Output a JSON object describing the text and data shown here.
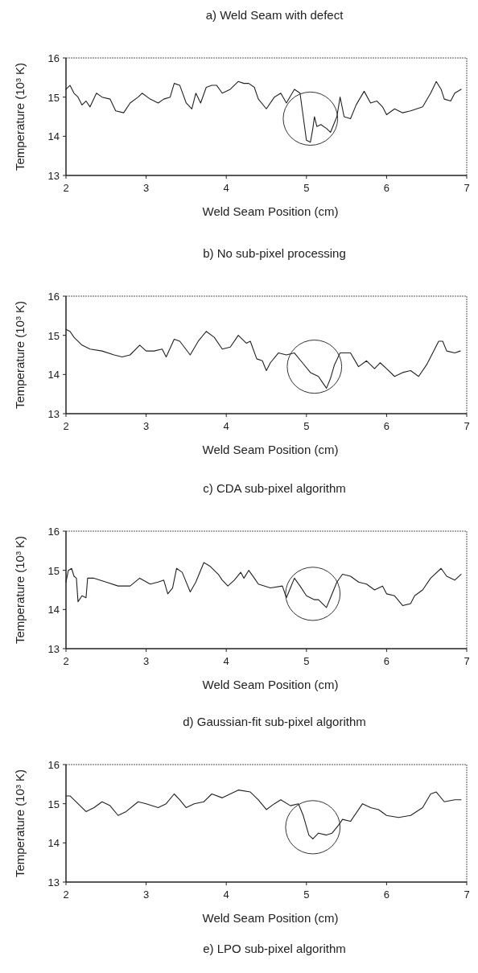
{
  "chart_data": [
    {
      "type": "line",
      "title": "a) Weld Seam with defect",
      "xlabel": "Weld Seam Position (cm)",
      "ylabel": "Temperature (10³ K)",
      "xlim": [
        2,
        7
      ],
      "xticks": [
        2,
        3,
        4,
        5,
        6,
        7
      ],
      "ylim": [
        13,
        16
      ],
      "yticks": [
        13,
        14,
        15,
        16
      ],
      "grid": false,
      "series": [
        {
          "color": "#222222",
          "x": [
            2.0,
            2.05,
            2.1,
            2.15,
            2.2,
            2.25,
            2.3,
            2.38,
            2.45,
            2.55,
            2.62,
            2.72,
            2.8,
            2.9,
            2.95,
            3.05,
            3.15,
            3.22,
            3.3,
            3.35,
            3.42,
            3.5,
            3.57,
            3.62,
            3.68,
            3.75,
            3.82,
            3.88,
            3.95,
            4.05,
            4.15,
            4.22,
            4.28,
            4.35,
            4.4,
            4.5,
            4.6,
            4.68,
            4.75,
            4.85,
            4.92,
            4.96,
            5.0,
            5.05,
            5.08,
            5.1,
            5.13,
            5.18,
            5.25,
            5.3,
            5.38,
            5.42,
            5.47,
            5.55,
            5.62,
            5.72,
            5.8,
            5.88,
            5.95,
            6.0,
            6.1,
            6.2,
            6.3,
            6.45,
            6.55,
            6.62,
            6.68,
            6.72,
            6.8,
            6.85,
            6.93
          ],
          "values": [
            15.2,
            15.3,
            15.1,
            15.0,
            14.8,
            14.9,
            14.75,
            15.1,
            15.0,
            14.95,
            14.65,
            14.6,
            14.85,
            15.0,
            15.1,
            14.95,
            14.85,
            14.95,
            15.0,
            15.35,
            15.3,
            14.85,
            14.7,
            15.1,
            14.85,
            15.25,
            15.3,
            15.3,
            15.1,
            15.2,
            15.4,
            15.35,
            15.35,
            15.25,
            14.95,
            14.7,
            15.0,
            15.1,
            14.85,
            15.2,
            15.1,
            14.5,
            13.9,
            13.85,
            14.2,
            14.5,
            14.25,
            14.3,
            14.2,
            14.1,
            14.5,
            15.0,
            14.5,
            14.45,
            14.8,
            15.15,
            14.85,
            14.9,
            14.75,
            14.55,
            14.7,
            14.6,
            14.65,
            14.75,
            15.1,
            15.4,
            15.2,
            14.95,
            14.9,
            15.1,
            15.2
          ]
        }
      ]
    },
    {
      "type": "line",
      "title": "b) No sub-pixel processing",
      "xlabel": "Weld Seam Position (cm)",
      "ylabel": "Temperature (10³ K)",
      "xlim": [
        2,
        7
      ],
      "xticks": [
        2,
        3,
        4,
        5,
        6,
        7
      ],
      "ylim": [
        13,
        16
      ],
      "yticks": [
        13,
        14,
        15,
        16
      ],
      "grid": false,
      "series": [
        {
          "color": "#222222",
          "x": [
            2.0,
            2.05,
            2.1,
            2.2,
            2.3,
            2.45,
            2.6,
            2.7,
            2.8,
            2.92,
            3.0,
            3.1,
            3.2,
            3.25,
            3.35,
            3.42,
            3.55,
            3.65,
            3.75,
            3.85,
            3.95,
            4.05,
            4.15,
            4.25,
            4.3,
            4.38,
            4.45,
            4.5,
            4.55,
            4.65,
            4.75,
            4.85,
            4.95,
            5.05,
            5.15,
            5.2,
            5.25,
            5.3,
            5.35,
            5.42,
            5.55,
            5.65,
            5.75,
            5.85,
            5.92,
            6.0,
            6.1,
            6.2,
            6.3,
            6.4,
            6.5,
            6.65,
            6.7,
            6.75,
            6.85,
            6.92
          ],
          "values": [
            15.15,
            15.1,
            14.95,
            14.75,
            14.65,
            14.6,
            14.5,
            14.45,
            14.5,
            14.75,
            14.6,
            14.6,
            14.65,
            14.45,
            14.9,
            14.85,
            14.5,
            14.85,
            15.1,
            14.95,
            14.65,
            14.7,
            15.0,
            14.8,
            14.85,
            14.4,
            14.35,
            14.1,
            14.3,
            14.55,
            14.5,
            14.55,
            14.3,
            14.05,
            13.95,
            13.8,
            13.65,
            13.9,
            14.25,
            14.55,
            14.55,
            14.2,
            14.35,
            14.15,
            14.3,
            14.15,
            13.95,
            14.05,
            14.1,
            13.95,
            14.25,
            14.85,
            14.85,
            14.6,
            14.55,
            14.6
          ]
        }
      ]
    },
    {
      "type": "line",
      "title": "c) CDA sub-pixel algorithm",
      "xlabel": "Weld Seam Position (cm)",
      "ylabel": "Temperature (10³ K)",
      "xlim": [
        2,
        7
      ],
      "xticks": [
        2,
        3,
        4,
        5,
        6,
        7
      ],
      "ylim": [
        13,
        16
      ],
      "yticks": [
        13,
        14,
        15,
        16
      ],
      "grid": false,
      "series": [
        {
          "color": "#222222",
          "x": [
            2.0,
            2.03,
            2.07,
            2.1,
            2.13,
            2.15,
            2.2,
            2.25,
            2.27,
            2.35,
            2.5,
            2.65,
            2.8,
            2.92,
            3.05,
            3.15,
            3.22,
            3.27,
            3.33,
            3.38,
            3.45,
            3.55,
            3.62,
            3.72,
            3.8,
            3.9,
            3.95,
            4.02,
            4.1,
            4.18,
            4.22,
            4.28,
            4.35,
            4.4,
            4.55,
            4.7,
            4.75,
            4.8,
            4.85,
            4.92,
            5.0,
            5.1,
            5.15,
            5.25,
            5.3,
            5.38,
            5.45,
            5.55,
            5.65,
            5.75,
            5.85,
            5.95,
            6.0,
            6.1,
            6.2,
            6.3,
            6.35,
            6.45,
            6.55,
            6.68,
            6.75,
            6.85,
            6.93
          ],
          "values": [
            14.7,
            15.0,
            15.05,
            14.85,
            14.8,
            14.2,
            14.35,
            14.3,
            14.8,
            14.8,
            14.7,
            14.6,
            14.6,
            14.8,
            14.65,
            14.7,
            14.75,
            14.4,
            14.55,
            15.05,
            14.95,
            14.45,
            14.7,
            15.2,
            15.1,
            14.9,
            14.75,
            14.6,
            14.75,
            14.95,
            14.8,
            15.0,
            14.8,
            14.65,
            14.55,
            14.6,
            14.3,
            14.55,
            14.8,
            14.6,
            14.35,
            14.25,
            14.25,
            14.05,
            14.3,
            14.7,
            14.9,
            14.85,
            14.7,
            14.65,
            14.5,
            14.6,
            14.4,
            14.35,
            14.1,
            14.15,
            14.35,
            14.5,
            14.8,
            15.05,
            14.85,
            14.75,
            14.9
          ]
        }
      ]
    },
    {
      "type": "line",
      "title": "d) Gaussian-fit sub-pixel algorithm",
      "xlabel": "Weld Seam Position (cm)",
      "ylabel": "Temperature (10³ K)",
      "xlim": [
        2,
        7
      ],
      "xticks": [
        2,
        3,
        4,
        5,
        6,
        7
      ],
      "ylim": [
        13,
        16
      ],
      "yticks": [
        13,
        14,
        15,
        16
      ],
      "grid": false,
      "annotations": [
        "e) LPO sub-pixel algorithm"
      ],
      "series": [
        {
          "color": "#222222",
          "x": [
            2.0,
            2.05,
            2.15,
            2.25,
            2.35,
            2.45,
            2.55,
            2.65,
            2.75,
            2.9,
            3.0,
            3.15,
            3.25,
            3.35,
            3.42,
            3.5,
            3.6,
            3.72,
            3.82,
            3.95,
            4.05,
            4.15,
            4.3,
            4.4,
            4.5,
            4.6,
            4.68,
            4.8,
            4.9,
            4.96,
            5.03,
            5.08,
            5.15,
            5.25,
            5.32,
            5.4,
            5.45,
            5.55,
            5.7,
            5.8,
            5.9,
            6.0,
            6.15,
            6.3,
            6.45,
            6.55,
            6.62,
            6.72,
            6.85,
            6.93
          ],
          "values": [
            15.2,
            15.2,
            15.0,
            14.8,
            14.9,
            15.05,
            14.95,
            14.7,
            14.8,
            15.05,
            15.0,
            14.9,
            15.0,
            15.25,
            15.1,
            14.9,
            15.0,
            15.05,
            15.25,
            15.15,
            15.25,
            15.35,
            15.3,
            15.1,
            14.85,
            15.0,
            15.1,
            14.95,
            15.0,
            14.7,
            14.2,
            14.1,
            14.25,
            14.2,
            14.25,
            14.45,
            14.6,
            14.55,
            15.0,
            14.9,
            14.85,
            14.7,
            14.65,
            14.7,
            14.9,
            15.25,
            15.3,
            15.05,
            15.1,
            15.1
          ]
        }
      ]
    }
  ]
}
